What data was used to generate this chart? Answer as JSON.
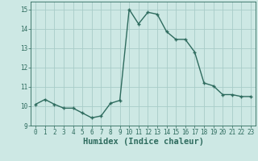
{
  "x": [
    0,
    1,
    2,
    3,
    4,
    5,
    6,
    7,
    8,
    9,
    10,
    11,
    12,
    13,
    14,
    15,
    16,
    17,
    18,
    19,
    20,
    21,
    22,
    23
  ],
  "y": [
    10.1,
    10.35,
    10.1,
    9.9,
    9.9,
    9.65,
    9.4,
    9.5,
    10.15,
    10.3,
    15.0,
    14.25,
    14.85,
    14.75,
    13.85,
    13.45,
    13.45,
    12.8,
    11.2,
    11.05,
    10.6,
    10.6,
    10.5,
    10.5
  ],
  "line_color": "#2e6b5e",
  "marker": "+",
  "marker_size": 3,
  "marker_linewidth": 1.0,
  "bg_color": "#cde8e4",
  "grid_color": "#a8ccc8",
  "xlabel": "Humidex (Indice chaleur)",
  "ylim": [
    9,
    15.4
  ],
  "xlim": [
    -0.5,
    23.5
  ],
  "yticks": [
    9,
    10,
    11,
    12,
    13,
    14,
    15
  ],
  "xticks": [
    0,
    1,
    2,
    3,
    4,
    5,
    6,
    7,
    8,
    9,
    10,
    11,
    12,
    13,
    14,
    15,
    16,
    17,
    18,
    19,
    20,
    21,
    22,
    23
  ],
  "tick_fontsize": 5.5,
  "xlabel_fontsize": 7.5,
  "line_width": 1.0
}
